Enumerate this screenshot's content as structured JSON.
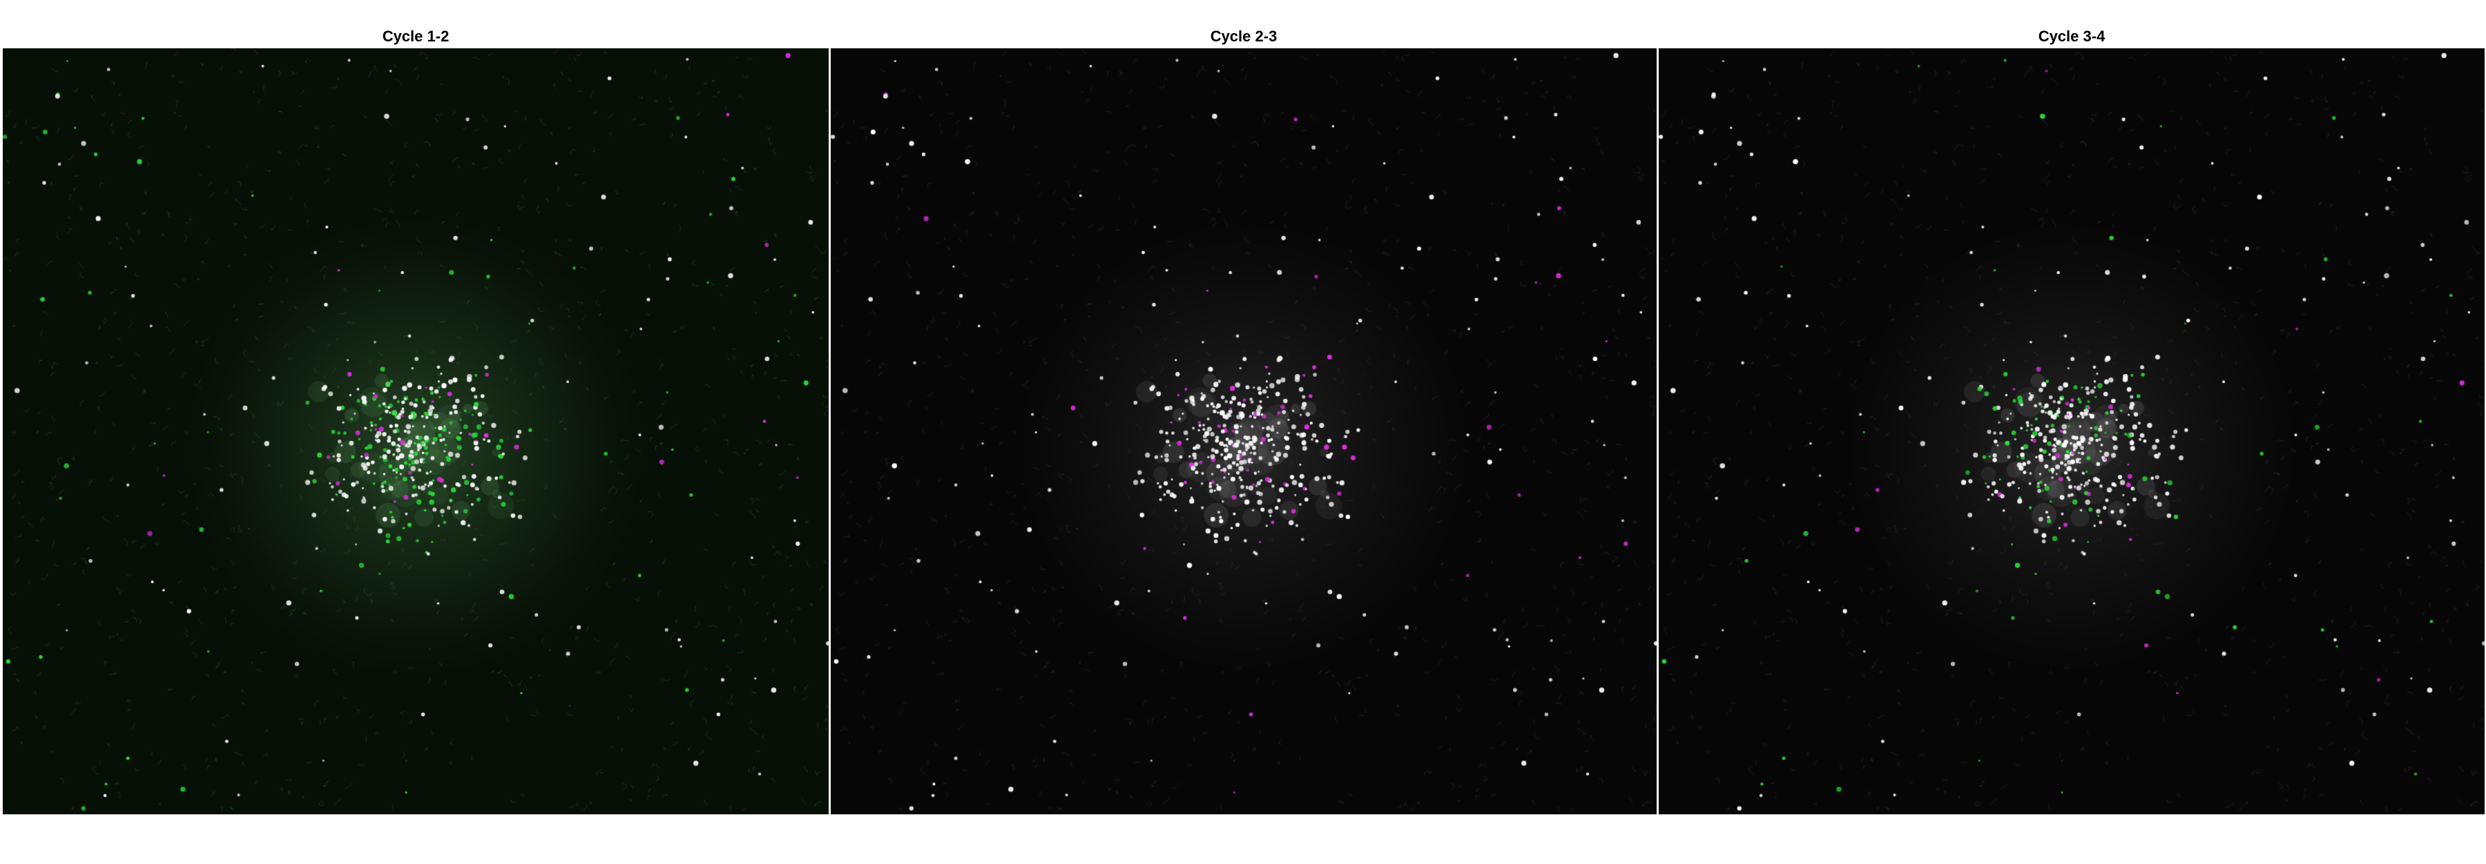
{
  "panels": [
    {
      "title": "Cycle 1-2",
      "tint": "green",
      "colors": {
        "a": "#2bd93a",
        "b": "#e02ee0",
        "match": "#ffffff"
      }
    },
    {
      "title": "Cycle 2-3",
      "tint": "neutral",
      "colors": {
        "a": "#2bd93a",
        "b": "#e02ee0",
        "match": "#ffffff"
      }
    },
    {
      "title": "Cycle 3-4",
      "tint": "neutral",
      "colors": {
        "a": "#2bd93a",
        "b": "#e02ee0",
        "match": "#ffffff"
      }
    }
  ]
}
